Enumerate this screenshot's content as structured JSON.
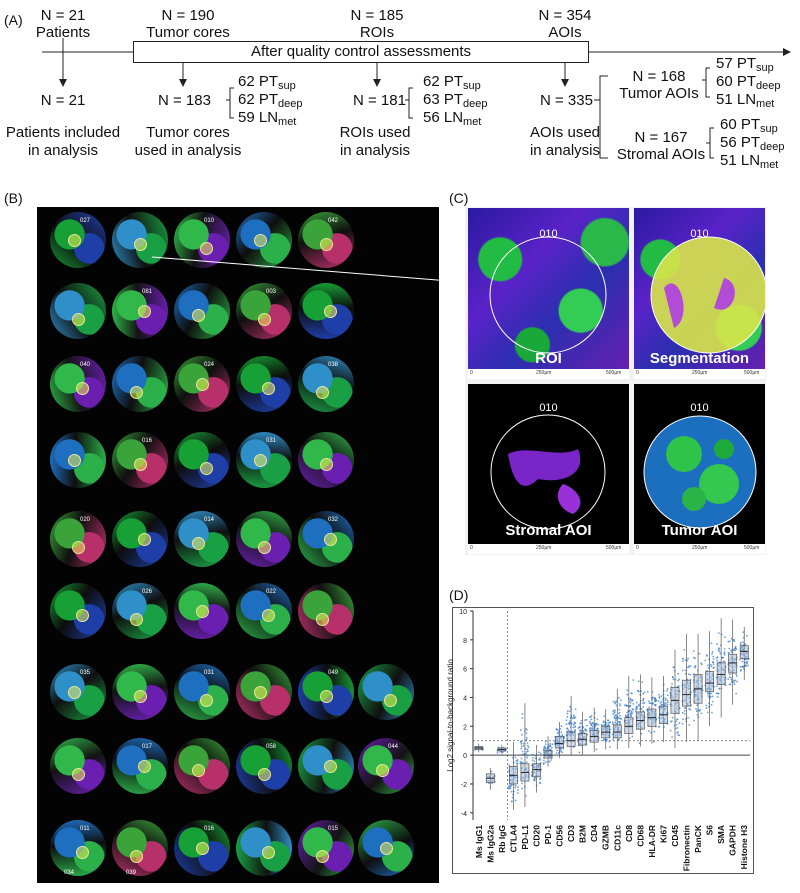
{
  "panel_a": {
    "letter": "(A)",
    "top": [
      {
        "n": "N = 21",
        "label": "Patients"
      },
      {
        "n": "N = 190",
        "label": "Tumor cores"
      },
      {
        "n": "N = 185",
        "label": "ROIs"
      },
      {
        "n": "N = 354",
        "label": "AOIs"
      }
    ],
    "qc_label": "After quality control assessments",
    "patients_after": "N = 21",
    "patients_caption": [
      "Patients included",
      "in analysis"
    ],
    "cores_after": "N = 183",
    "cores_caption": [
      "Tumor cores",
      "used in analysis"
    ],
    "cores_split": [
      [
        "62 PT",
        "sup"
      ],
      [
        "62 PT",
        "deep"
      ],
      [
        "59 LN",
        "met"
      ]
    ],
    "rois_after": "N = 181",
    "rois_caption": [
      "ROIs used",
      "in analysis"
    ],
    "rois_split": [
      [
        "62 PT",
        "sup"
      ],
      [
        "63 PT",
        "deep"
      ],
      [
        "56 LN",
        "met"
      ]
    ],
    "aois_after": "N = 335",
    "aois_caption": [
      "AOIs used",
      "in analysis"
    ],
    "tumor_aois": [
      "N = 168",
      "Tumor AOIs"
    ],
    "tumor_split": [
      [
        "57 PT",
        "sup"
      ],
      [
        "60 PT",
        "deep"
      ],
      [
        "51 LN",
        "met"
      ]
    ],
    "stromal_aois": [
      "N = 167",
      "Stromal AOIs"
    ],
    "stromal_split": [
      [
        "60 PT",
        "sup"
      ],
      [
        "56 PT",
        "deep"
      ],
      [
        "51 LN",
        "met"
      ]
    ]
  },
  "panel_b": {
    "letter": "(B)",
    "core_ids": [
      "027",
      "010",
      "042",
      "081",
      "003",
      "040",
      "024",
      "038",
      "016",
      "031",
      "020",
      "014",
      "032",
      "026",
      "022",
      "035",
      "031",
      "049",
      "017",
      "058",
      "044",
      "011",
      "016",
      "015",
      "034",
      "039"
    ]
  },
  "panel_c": {
    "letter": "(C)",
    "roi_id": "010",
    "labels": [
      "ROI",
      "Segmentation",
      "Stromal AOI",
      "Tumor AOI"
    ],
    "scale_ticks": [
      "0",
      "250µm",
      "500µm"
    ]
  },
  "panel_d": {
    "letter": "(D)",
    "chart_data": {
      "type": "boxplot",
      "ylabel": "Log2 signal-to-background ratio",
      "ylim": [
        -4.5,
        10
      ],
      "yticks": [
        "-4",
        "-2",
        "0",
        "2",
        "4",
        "6",
        "8",
        "10"
      ],
      "reference_line": 0,
      "dotted_line": 1,
      "categories": [
        "Ms IgG1",
        "Ms IgG2a",
        "Rb IgG",
        "CTLA4",
        "PD-L1",
        "CD20",
        "PD-1",
        "CD56",
        "CD3",
        "B2M",
        "CD4",
        "GZMB",
        "CD11c",
        "CD8",
        "CD68",
        "HLA-DR",
        "Ki67",
        "CD45",
        "Fibronectin",
        "PanCK",
        "S6",
        "SMA",
        "GAPDH",
        "Histone H3"
      ],
      "medians": [
        0.5,
        -1.6,
        0.4,
        -1.4,
        -1.2,
        -1.0,
        0.0,
        0.8,
        1.0,
        1.1,
        1.3,
        1.6,
        1.6,
        2.0,
        2.4,
        2.6,
        2.8,
        3.8,
        4.2,
        4.6,
        5.0,
        5.6,
        6.4,
        7.2
      ],
      "q1": [
        0.4,
        -1.9,
        0.3,
        -2.0,
        -1.8,
        -1.5,
        -0.2,
        0.5,
        0.6,
        0.7,
        0.9,
        1.2,
        1.2,
        1.5,
        1.8,
        2.0,
        2.2,
        2.9,
        3.4,
        3.6,
        4.4,
        4.9,
        5.7,
        6.7
      ],
      "q3": [
        0.6,
        -1.3,
        0.5,
        -0.8,
        -0.6,
        -0.6,
        0.3,
        1.3,
        1.6,
        1.5,
        1.7,
        2.0,
        2.1,
        2.6,
        3.0,
        3.2,
        3.4,
        4.7,
        5.2,
        5.6,
        5.8,
        6.4,
        7.0,
        7.6
      ],
      "min": [
        0.2,
        -2.4,
        0.1,
        -3.8,
        -3.6,
        -2.6,
        -0.8,
        -0.2,
        0.0,
        0.0,
        0.2,
        0.4,
        0.4,
        0.5,
        0.6,
        0.8,
        0.9,
        0.5,
        0.9,
        1.0,
        2.0,
        2.6,
        3.5,
        5.2
      ],
      "max": [
        0.8,
        -0.9,
        0.7,
        0.9,
        3.6,
        0.7,
        1.3,
        2.3,
        4.1,
        3.0,
        3.3,
        3.2,
        4.6,
        5.5,
        5.6,
        5.4,
        5.5,
        7.3,
        8.4,
        8.4,
        8.6,
        9.5,
        9.4,
        8.9
      ]
    }
  }
}
